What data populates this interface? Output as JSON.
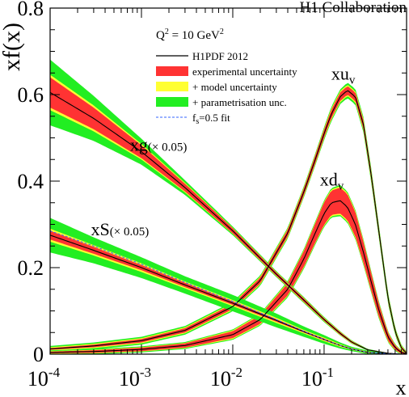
{
  "chart_data": {
    "type": "line",
    "collaboration": "H1 Collaboration",
    "ylabel": "xf(x)",
    "xlabel": "x",
    "x_scale": "log",
    "xlim": [
      0.0001,
      0.8
    ],
    "ylim": [
      0,
      0.8
    ],
    "x_ticks": [
      {
        "value": 0.0001,
        "base": "10",
        "exp": "-4"
      },
      {
        "value": 0.001,
        "base": "10",
        "exp": "-3"
      },
      {
        "value": 0.01,
        "base": "10",
        "exp": "-2"
      },
      {
        "value": 0.1,
        "base": "10",
        "exp": "-1"
      }
    ],
    "y_ticks": [
      {
        "value": 0,
        "label": "0"
      },
      {
        "value": 0.2,
        "label": "0.2"
      },
      {
        "value": 0.4,
        "label": "0.4"
      },
      {
        "value": 0.6,
        "label": "0.6"
      },
      {
        "value": 0.8,
        "label": "0.8"
      }
    ],
    "legend": {
      "header_prefix": "Q",
      "header_sup": "2",
      "header_suffix": " = 10 GeV",
      "header_suffix_sup": "2",
      "entries": [
        {
          "label": "H1PDF 2012",
          "style": "line",
          "color": "#000000"
        },
        {
          "label": "experimental uncertainty",
          "style": "box",
          "color": "#ff3333"
        },
        {
          "label": "+ model uncertainty",
          "style": "box",
          "color": "#ffff33"
        },
        {
          "label": "+ parametrisation unc.",
          "style": "box",
          "color": "#22ee22"
        },
        {
          "label_prefix": "f",
          "label_sub": "s",
          "label_suffix": "=0.5 fit",
          "style": "dashed",
          "color": "#3366ff"
        }
      ]
    },
    "colors": {
      "central": "#000000",
      "exp": "#ff3333",
      "model": "#ffff33",
      "param": "#22ee22",
      "fs": "#3366ff"
    },
    "series": [
      {
        "name": "xu",
        "label_base": "xu",
        "label_sub": "v",
        "label_at": [
          0.12,
          0.635
        ],
        "x": [
          0.0001,
          0.0003,
          0.001,
          0.003,
          0.01,
          0.02,
          0.04,
          0.06,
          0.08,
          0.1,
          0.12,
          0.15,
          0.18,
          0.22,
          0.27,
          0.33,
          0.4,
          0.5,
          0.6,
          0.7,
          0.8
        ],
        "y": [
          0.012,
          0.019,
          0.031,
          0.055,
          0.11,
          0.17,
          0.28,
          0.375,
          0.45,
          0.51,
          0.555,
          0.595,
          0.61,
          0.595,
          0.53,
          0.41,
          0.28,
          0.13,
          0.052,
          0.015,
          0.002
        ],
        "exp_err": [
          0.002,
          0.003,
          0.004,
          0.005,
          0.006,
          0.007,
          0.008,
          0.008,
          0.009,
          0.009,
          0.01,
          0.01,
          0.01,
          0.01,
          0.01,
          0.009,
          0.008,
          0.006,
          0.004,
          0.003,
          0.002
        ],
        "model_err": [
          0.002,
          0.002,
          0.002,
          0.002,
          0.002,
          0.002,
          0.002,
          0.002,
          0.002,
          0.002,
          0.003,
          0.003,
          0.003,
          0.003,
          0.003,
          0.003,
          0.003,
          0.003,
          0.002,
          0.002,
          0.001
        ],
        "param_err": [
          0.003,
          0.003,
          0.003,
          0.003,
          0.003,
          0.003,
          0.003,
          0.003,
          0.003,
          0.004,
          0.004,
          0.004,
          0.005,
          0.005,
          0.005,
          0.005,
          0.004,
          0.004,
          0.003,
          0.002,
          0.001
        ]
      },
      {
        "name": "xd",
        "label_base": "xd",
        "label_sub": "v",
        "label_at": [
          0.09,
          0.39
        ],
        "x": [
          0.0001,
          0.0003,
          0.001,
          0.003,
          0.01,
          0.02,
          0.04,
          0.06,
          0.08,
          0.1,
          0.12,
          0.15,
          0.18,
          0.22,
          0.27,
          0.33,
          0.4,
          0.5,
          0.6,
          0.7,
          0.8
        ],
        "y": [
          0.004,
          0.006,
          0.011,
          0.02,
          0.045,
          0.08,
          0.15,
          0.22,
          0.28,
          0.325,
          0.35,
          0.355,
          0.34,
          0.3,
          0.235,
          0.165,
          0.1,
          0.04,
          0.015,
          0.004,
          0.001
        ],
        "exp_err": [
          0.002,
          0.003,
          0.004,
          0.005,
          0.008,
          0.01,
          0.014,
          0.018,
          0.022,
          0.026,
          0.028,
          0.03,
          0.03,
          0.028,
          0.024,
          0.02,
          0.015,
          0.009,
          0.005,
          0.003,
          0.001
        ],
        "model_err": [
          0.001,
          0.001,
          0.001,
          0.001,
          0.002,
          0.002,
          0.002,
          0.002,
          0.002,
          0.002,
          0.003,
          0.003,
          0.003,
          0.003,
          0.003,
          0.002,
          0.002,
          0.002,
          0.001,
          0.001,
          0.001
        ],
        "param_err": [
          0.002,
          0.002,
          0.002,
          0.002,
          0.002,
          0.002,
          0.003,
          0.003,
          0.003,
          0.003,
          0.003,
          0.003,
          0.003,
          0.003,
          0.003,
          0.003,
          0.003,
          0.002,
          0.002,
          0.001,
          0.001
        ]
      },
      {
        "name": "xg (×0.05)",
        "label_base": "xg",
        "label_scale": "(× 0.05)",
        "label_at": [
          0.00075,
          0.47
        ],
        "x": [
          0.0001,
          0.0003,
          0.001,
          0.003,
          0.01,
          0.03,
          0.06,
          0.1,
          0.15,
          0.2,
          0.3,
          0.5,
          0.7
        ],
        "y": [
          0.605,
          0.545,
          0.468,
          0.385,
          0.285,
          0.185,
          0.125,
          0.08,
          0.048,
          0.028,
          0.01,
          0.002,
          0.0
        ],
        "exp_err": [
          0.035,
          0.025,
          0.015,
          0.009,
          0.006,
          0.004,
          0.004,
          0.003,
          0.003,
          0.002,
          0.001,
          0.001,
          0.0
        ],
        "model_err": [
          0.006,
          0.005,
          0.003,
          0.002,
          0.001,
          0.001,
          0.001,
          0.001,
          0.001,
          0.001,
          0.0,
          0.0,
          0.0
        ],
        "param_err": [
          0.035,
          0.022,
          0.012,
          0.006,
          0.003,
          0.002,
          0.002,
          0.002,
          0.001,
          0.001,
          0.001,
          0.0,
          0.0
        ]
      },
      {
        "name": "xS (×0.05)",
        "label_base": "xS",
        "label_scale": "(× 0.05)",
        "label_at": [
          0.00028,
          0.275
        ],
        "fs_fit": true,
        "x": [
          0.0001,
          0.0003,
          0.001,
          0.003,
          0.01,
          0.03,
          0.06,
          0.1,
          0.15,
          0.2,
          0.3,
          0.5,
          0.7
        ],
        "y": [
          0.275,
          0.24,
          0.2,
          0.16,
          0.118,
          0.078,
          0.052,
          0.034,
          0.02,
          0.012,
          0.004,
          0.001,
          0.0
        ],
        "exp_err": [
          0.01,
          0.008,
          0.006,
          0.005,
          0.004,
          0.003,
          0.002,
          0.002,
          0.001,
          0.001,
          0.001,
          0.0,
          0.0
        ],
        "model_err": [
          0.005,
          0.004,
          0.004,
          0.003,
          0.003,
          0.003,
          0.002,
          0.002,
          0.002,
          0.001,
          0.001,
          0.0,
          0.0
        ],
        "param_err": [
          0.025,
          0.018,
          0.014,
          0.012,
          0.012,
          0.01,
          0.008,
          0.006,
          0.004,
          0.003,
          0.002,
          0.001,
          0.0
        ],
        "fs_y": [
          0.285,
          0.25,
          0.208,
          0.166,
          0.122,
          0.08,
          0.053,
          0.034,
          0.02,
          0.012,
          0.004,
          0.001,
          0.0
        ]
      }
    ]
  }
}
